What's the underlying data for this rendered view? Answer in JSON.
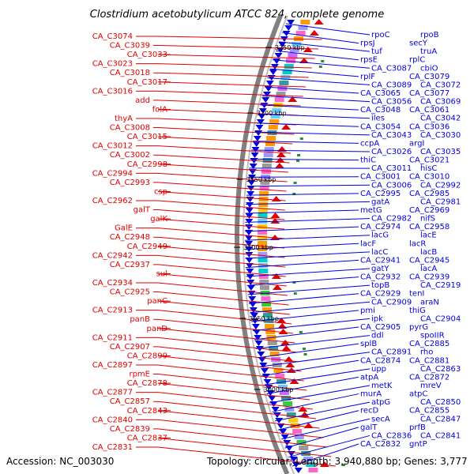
{
  "title": "Clostridium acetobutylicum ATCC 824, complete genome",
  "footer": {
    "accession": "Accession: NC_003030",
    "topology": "Topology: circular; Length: 3,940,880 bp; Genes: 3,777"
  },
  "colors": {
    "forward_gene": "#e00000",
    "reverse_gene": "#0000e0",
    "backbone": "#808080",
    "rna": "#2e8b2e"
  },
  "kbp_marks": [
    "3250 kbp",
    "3200 kbp",
    "3150 kbp",
    "3100 kbp",
    "3050 kbp",
    "3000 kbp"
  ],
  "forward_labels": [
    "CA_C3074",
    "CA_C3039",
    "CA_C3033",
    "CA_C3023",
    "CA_C3018",
    "CA_C3017",
    "CA_C3016",
    "add",
    "folA",
    "thyA",
    "CA_C3008",
    "CA_C3015",
    "CA_C3012",
    "CA_C3002",
    "CA_C2998",
    "CA_C2994",
    "CA_C2993",
    "csp",
    "CA_C2962",
    "galT",
    "galK",
    "GalE",
    "CA_C2948",
    "CA_C2949",
    "CA_C2942",
    "CA_C2937",
    "sul",
    "CA_C2934",
    "CA_C2925",
    "panC",
    "CA_C2913",
    "panB",
    "panD",
    "CA_C2911",
    "CA_C2907",
    "CA_C2899",
    "CA_C2897",
    "rpmE",
    "CA_C2878",
    "CA_C2877",
    "CA_C2857",
    "CA_C2843",
    "CA_C2840",
    "CA_C2839",
    "CA_C2837",
    "CA_C2831"
  ],
  "reverse_labels": [
    "rpoC",
    "rpoB",
    "rpsJ",
    "secY",
    "tuf",
    "truA",
    "rpsE",
    "rplC",
    "CA_C3087",
    "cbiO",
    "rplF",
    "CA_C3079",
    "CA_C3089",
    "CA_C3072",
    "CA_C3065",
    "CA_C3077",
    "CA_C3056",
    "CA_C3069",
    "CA_C3048",
    "CA_C3061",
    "iles",
    "CA_C3042",
    "CA_C3054",
    "CA_C3036",
    "CA_C3043",
    "CA_C3030",
    "ccpA",
    "argI",
    "CA_C3026",
    "CA_C3035",
    "thiC",
    "CA_C3021",
    "CA_C3011",
    "hisC",
    "CA_C3001",
    "CA_C3010",
    "CA_C3006",
    "CA_C2992",
    "CA_C2995",
    "CA_C2985",
    "gatA",
    "CA_C2981",
    "metG",
    "CA_C2969",
    "CA_C2982",
    "nifS",
    "CA_C2974",
    "CA_C2958",
    "lacG",
    "lacE",
    "lacF",
    "lacR",
    "lacC",
    "lacB",
    "CA_C2941",
    "CA_C2945",
    "gatY",
    "lacA",
    "CA_C2932",
    "CA_C2939",
    "topB",
    "CA_C2919",
    "CA_C2929",
    "tenI",
    "CA_C2909",
    "araN",
    "pmi",
    "thiG",
    "ipk",
    "CA_C2904",
    "CA_C2905",
    "pyrG",
    "ddl",
    "spoIIR",
    "splB",
    "CA_C2885",
    "CA_C2891",
    "rho",
    "CA_C2874",
    "CA_C2881",
    "upp",
    "CA_C2863",
    "atpA",
    "CA_C2872",
    "metK",
    "mreV",
    "murA",
    "atpC",
    "atpG",
    "CA_C2850",
    "recD",
    "CA_C2855",
    "secA",
    "CA_C2847",
    "galT",
    "prfB",
    "CA_C2836",
    "CA_C2841",
    "CA_C2832",
    "gntP"
  ]
}
